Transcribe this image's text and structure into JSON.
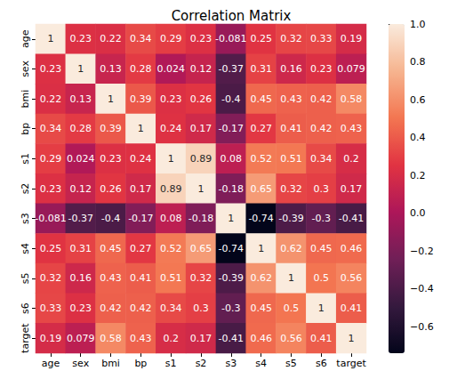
{
  "chart_data": {
    "type": "heatmap",
    "title": "Correlation Matrix",
    "categories": [
      "age",
      "sex",
      "bmi",
      "bp",
      "s1",
      "s2",
      "s3",
      "s4",
      "s5",
      "s6",
      "target"
    ],
    "values": [
      [
        1,
        0.23,
        0.22,
        0.34,
        0.29,
        0.23,
        -0.081,
        0.25,
        0.32,
        0.33,
        0.19
      ],
      [
        0.23,
        1,
        0.13,
        0.28,
        0.024,
        0.12,
        -0.37,
        0.31,
        0.16,
        0.23,
        0.079
      ],
      [
        0.22,
        0.13,
        1,
        0.39,
        0.23,
        0.26,
        -0.4,
        0.45,
        0.43,
        0.42,
        0.58
      ],
      [
        0.34,
        0.28,
        0.39,
        1,
        0.24,
        0.17,
        -0.17,
        0.27,
        0.41,
        0.42,
        0.43
      ],
      [
        0.29,
        0.024,
        0.23,
        0.24,
        1,
        0.89,
        0.08,
        0.52,
        0.51,
        0.34,
        0.2
      ],
      [
        0.23,
        0.12,
        0.26,
        0.17,
        0.89,
        1,
        -0.18,
        0.65,
        0.32,
        0.3,
        0.17
      ],
      [
        -0.081,
        -0.37,
        -0.4,
        -0.17,
        0.08,
        -0.18,
        1,
        -0.74,
        -0.39,
        -0.3,
        -0.41
      ],
      [
        0.25,
        0.31,
        0.45,
        0.27,
        0.52,
        0.65,
        -0.74,
        1,
        0.62,
        0.45,
        0.46
      ],
      [
        0.32,
        0.16,
        0.43,
        0.41,
        0.51,
        0.32,
        -0.39,
        0.62,
        1,
        0.5,
        0.56
      ],
      [
        0.33,
        0.23,
        0.42,
        0.42,
        0.34,
        0.3,
        -0.3,
        0.45,
        0.5,
        1,
        0.41
      ],
      [
        0.19,
        0.079,
        0.58,
        0.43,
        0.2,
        0.17,
        -0.41,
        0.46,
        0.56,
        0.41,
        1
      ]
    ],
    "data_labels": true,
    "colorbar": {
      "range": [
        -0.74,
        1
      ],
      "ticks": [
        {
          "value": -0.6,
          "label": "−0.6"
        },
        {
          "value": -0.4,
          "label": "−0.4"
        },
        {
          "value": -0.2,
          "label": "−0.2"
        },
        {
          "value": 0,
          "label": "0.0"
        },
        0.2,
        0.4,
        0.6,
        0.8,
        {
          "value": 1,
          "label": "1.0"
        }
      ]
    }
  }
}
